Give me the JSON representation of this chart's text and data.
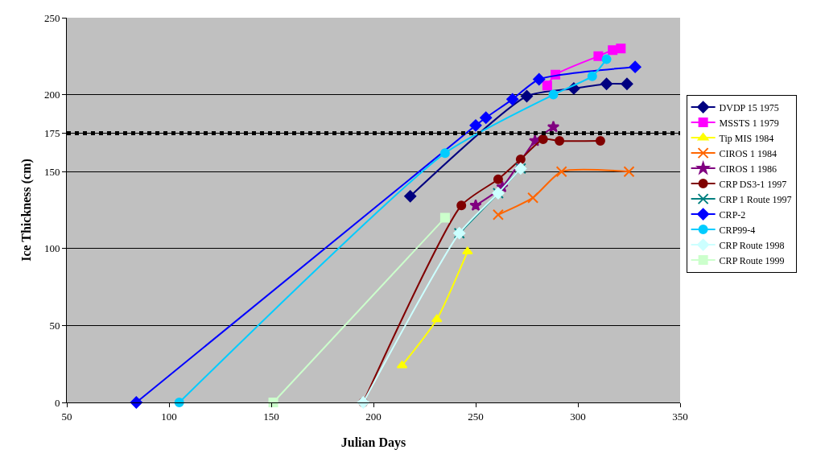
{
  "chart_data": {
    "type": "line",
    "xlabel": "Julian Days",
    "ylabel": "Ice Thickness (cm)",
    "xlim": [
      50,
      350
    ],
    "xticks": [
      50,
      100,
      150,
      200,
      250,
      300,
      350
    ],
    "ylim": [
      0,
      250
    ],
    "yticks": [
      0,
      50,
      100,
      150,
      175,
      200,
      250
    ],
    "grid": "y",
    "legend": "right",
    "ref_lines": [
      {
        "axis": "y",
        "value": 175,
        "color": "#000000",
        "line_style": "dotted"
      }
    ],
    "series": [
      {
        "name": "DVDP 15 1975",
        "color": "#000080",
        "marker": "diamond",
        "x": [
          218,
          275,
          298,
          314,
          324
        ],
        "values": [
          134,
          199,
          204,
          207,
          207
        ]
      },
      {
        "name": "MSSTS 1 1979",
        "color": "#ff00ff",
        "marker": "square",
        "x": [
          285,
          289,
          310,
          317,
          321
        ],
        "values": [
          206,
          213,
          225,
          229,
          230
        ]
      },
      {
        "name": "Tip MIS 1984",
        "color": "#ffff00",
        "marker": "triangle",
        "x": [
          214,
          231,
          246
        ],
        "values": [
          24,
          54,
          98
        ]
      },
      {
        "name": "CIROS 1 1984",
        "color": "#ff6600",
        "marker": "cross",
        "x": [
          261,
          278,
          292,
          325
        ],
        "values": [
          122,
          133,
          150,
          150
        ]
      },
      {
        "name": "CIROS 1 1986",
        "color": "#800080",
        "marker": "star",
        "x": [
          250,
          263,
          279,
          288
        ],
        "values": [
          128,
          140,
          170,
          179
        ]
      },
      {
        "name": "CRP DS3-1 1997",
        "color": "#800000",
        "marker": "circle",
        "x": [
          195,
          243,
          261,
          272,
          283,
          291,
          311
        ],
        "values": [
          0,
          128,
          145,
          158,
          171,
          170,
          170
        ]
      },
      {
        "name": "CRP 1 Route 1997",
        "color": "#008080",
        "marker": "cross",
        "x": [
          242,
          261,
          272
        ],
        "values": [
          110,
          136,
          152
        ]
      },
      {
        "name": "CRP-2",
        "color": "#0000ff",
        "marker": "diamond",
        "x": [
          84,
          250,
          255,
          268,
          281,
          328
        ],
        "values": [
          0,
          180,
          185,
          197,
          210,
          218
        ]
      },
      {
        "name": "CRP99-4",
        "color": "#00ccff",
        "marker": "circle",
        "x": [
          105,
          235,
          288,
          307,
          314
        ],
        "values": [
          0,
          162,
          200,
          212,
          223
        ]
      },
      {
        "name": "CRP Route 1998",
        "color": "#ccffff",
        "marker": "diamond",
        "x": [
          195,
          242,
          261,
          272
        ],
        "values": [
          0,
          110,
          136,
          152
        ]
      },
      {
        "name": "CRP Route 1999",
        "color": "#ccffcc",
        "marker": "square",
        "x": [
          151,
          235
        ],
        "values": [
          0,
          120
        ]
      }
    ]
  }
}
